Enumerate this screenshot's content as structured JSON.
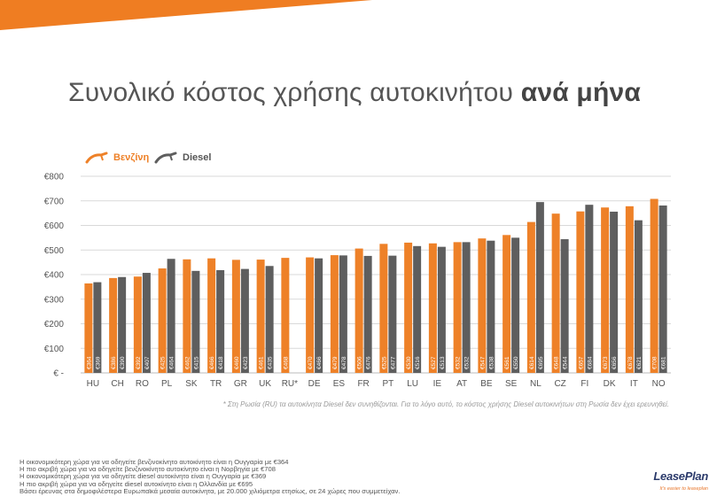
{
  "title": {
    "main": "Συνολικό κόστος χρήσης αυτοκινήτου",
    "bold": "ανά μήνα"
  },
  "legend": {
    "petrol": "Βενζίνη",
    "diesel": "Diesel"
  },
  "colors": {
    "petrol": "#ee8128",
    "diesel": "#5e5e5e",
    "grid": "#d9d9d9",
    "label": "#ffffff",
    "stripe": "#ef7d22"
  },
  "footnote": "* Στη Ρωσία (RU) τα αυτοκίνητα Diesel δεν συνηθίζονται. Για το λόγο αυτό, το κόστος χρήσης Diesel αυτοκινήτων στη Ρωσία δεν έχει ερευνηθεί.",
  "notes": [
    "Η οικονομικότερη χώρα για να οδηγείτε βενζινοκίνητο αυτοκίνητο είναι η Ουγγαρία με €364",
    "Η πιο ακριβή χώρα για να οδηγείτε βενζινοκίνητο αυτοκίνητο είναι η Νορβηγία με €708",
    "Η οικονομικότερη χώρα για να οδηγείτε diesel αυτοκίνητο είναι η Ουγγαρία με €369",
    "Η πιο ακριβή χώρα για να οδηγείτε diesel αυτοκίνητο είναι η Ολλανδία με €695",
    "Βάσει έρευνας στα δημοφιλέστερα Ευρωπαϊκά μεσαία αυτοκίνητα, με 20.000 χιλιόμετρα ετησίως, σε 24 χώρες που συμμετείχαν."
  ],
  "logo": {
    "name": "LeasePlan",
    "tagline": "It's easier to leaseplan"
  },
  "chart_data": {
    "type": "bar",
    "categories": [
      "HU",
      "CH",
      "RO",
      "PL",
      "SK",
      "TR",
      "GR",
      "UK",
      "RU*",
      "DE",
      "ES",
      "FR",
      "PT",
      "LU",
      "IE",
      "AT",
      "BE",
      "SE",
      "NL",
      "CZ",
      "FI",
      "DK",
      "IT",
      "NO"
    ],
    "series": [
      {
        "name": "Βενζίνη",
        "values": [
          364,
          386,
          392,
          425,
          462,
          466,
          460,
          461,
          468,
          470,
          479,
          506,
          525,
          530,
          527,
          532,
          547,
          561,
          614,
          648,
          657,
          673,
          678,
          708
        ],
        "labels": [
          "€364",
          "€386",
          "€392",
          "€425",
          "€462",
          "€466",
          "€460",
          "€461",
          "€468",
          "€470",
          "€479",
          "€506",
          "€525",
          "€530",
          "€527",
          "€532",
          "€547",
          "€561",
          "€614",
          "€648",
          "€657",
          "€673",
          "€678",
          "€708"
        ]
      },
      {
        "name": "Diesel",
        "values": [
          369,
          390,
          407,
          464,
          415,
          418,
          423,
          435,
          null,
          466,
          478,
          476,
          477,
          516,
          513,
          532,
          538,
          550,
          695,
          544,
          684,
          656,
          621,
          681
        ],
        "labels": [
          "€369",
          "€390",
          "€407",
          "€464",
          "€415",
          "€418",
          "€423",
          "€435",
          "",
          "€466",
          "€478",
          "€476",
          "€477",
          "€516",
          "€513",
          "€532",
          "€538",
          "€550",
          "€695",
          "€544",
          "€684",
          "€656",
          "€621",
          "€681"
        ]
      }
    ],
    "yticks": [
      "€ -",
      "€100",
      "€200",
      "€300",
      "€400",
      "€500",
      "€600",
      "€700",
      "€800"
    ],
    "ylim": [
      0,
      800
    ],
    "grid": true,
    "legend_position": "top-left"
  }
}
